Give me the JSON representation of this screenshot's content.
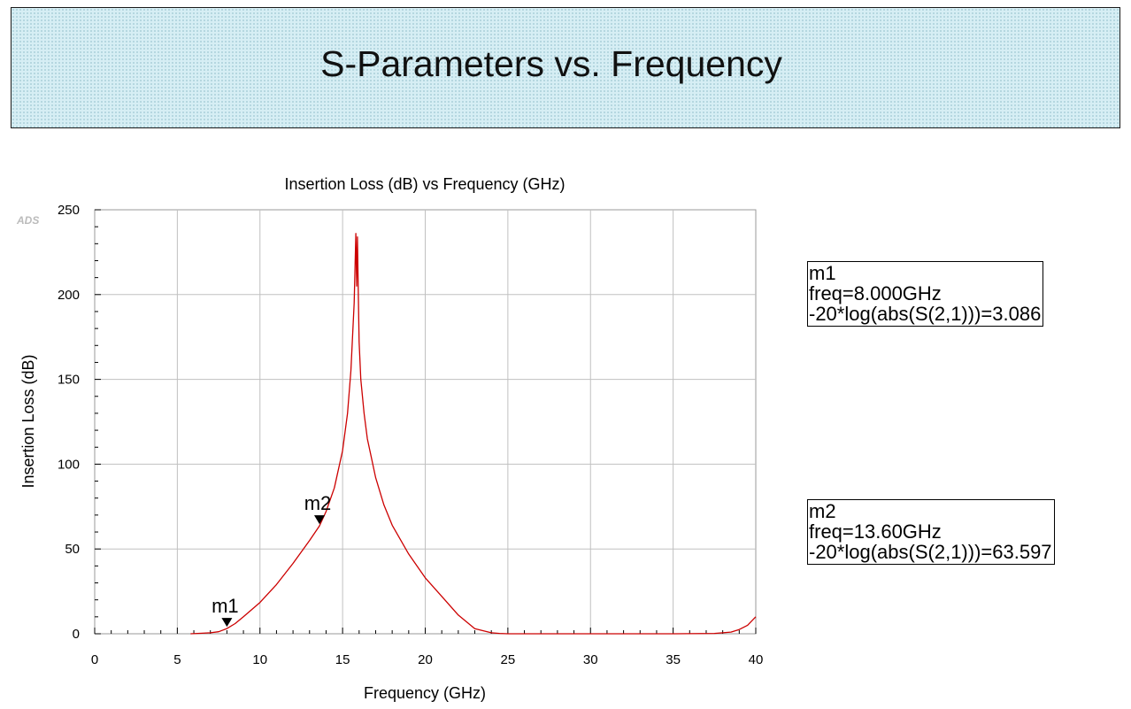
{
  "page_title": "S-Parameters vs. Frequency",
  "watermark": "ADS",
  "colors": {
    "trace": "#cc0000",
    "grid": "#c0c0c0",
    "banner": "#d6eef4"
  },
  "chart_data": {
    "type": "line",
    "title": "Insertion Loss (dB) vs Frequency (GHz)",
    "xlabel": "Frequency (GHz)",
    "ylabel": "Insertion Loss (dB)",
    "xlim": [
      0,
      40
    ],
    "ylim": [
      0,
      250
    ],
    "xticks": [
      0,
      5,
      10,
      15,
      20,
      25,
      30,
      35,
      40
    ],
    "yticks": [
      0,
      50,
      100,
      150,
      200,
      250
    ],
    "grid": true,
    "series": [
      {
        "x": [
          5.8,
          6.5,
          7.0,
          7.5,
          8.0,
          8.5,
          9.0,
          10.0,
          11.0,
          12.0,
          13.0,
          13.6,
          14.0,
          14.5,
          15.0,
          15.3,
          15.5,
          15.7,
          15.8,
          15.85,
          15.9,
          15.95,
          16.0,
          16.1,
          16.3,
          16.5,
          17.0,
          17.5,
          18.0,
          19.0,
          20.0,
          21.0,
          22.0,
          23.0,
          24.0,
          24.5,
          25.0,
          26.0,
          30.0,
          35.0,
          37.5,
          38.5,
          39.0,
          39.5,
          40.0
        ],
        "y": [
          0,
          0.3,
          0.6,
          1.2,
          3.086,
          6,
          10,
          18.5,
          29,
          41.5,
          55,
          63.597,
          72,
          86,
          108,
          130,
          155,
          195,
          236,
          205,
          234,
          200,
          172,
          150,
          130,
          115,
          92,
          76,
          64,
          47,
          33,
          22,
          11,
          3,
          0.6,
          0.2,
          0,
          0,
          0,
          0,
          0.2,
          1,
          2.5,
          5,
          10
        ]
      }
    ],
    "markers": [
      {
        "name": "m1",
        "freq": 8.0,
        "value": 3.086,
        "line1": "m1",
        "line2": "freq=8.000GHz",
        "line3": "-20*log(abs(S(2,1)))=3.086"
      },
      {
        "name": "m2",
        "freq": 13.6,
        "value": 63.597,
        "line1": "m2",
        "line2": "freq=13.60GHz",
        "line3": "-20*log(abs(S(2,1)))=63.597"
      }
    ]
  }
}
